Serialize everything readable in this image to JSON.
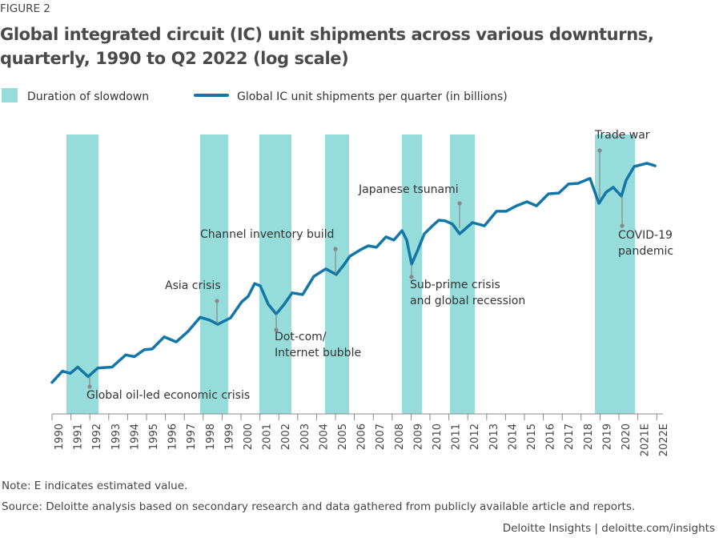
{
  "chart_data": {
    "type": "line",
    "figure_label": "FIGURE 2",
    "title": [
      "Global integrated circuit (IC) unit shipments across various downturns,",
      "quarterly, 1990 to Q2 2022 (log scale)"
    ],
    "band_legend": "Duration of slowdown",
    "band_color": "#96dcda",
    "slowdowns": [
      [
        1990.76,
        1992.46
      ],
      [
        1997.84,
        1999.32
      ],
      [
        2000.97,
        2002.67
      ],
      [
        2004.45,
        2005.72
      ],
      [
        2008.52,
        2009.58
      ],
      [
        2011.06,
        2012.37
      ],
      [
        2018.73,
        2020.85
      ]
    ],
    "x": [
      1990.0,
      1990.55,
      1990.97,
      1991.36,
      1991.91,
      1992.42,
      1993.18,
      1993.9,
      1994.36,
      1994.87,
      1995.3,
      1995.93,
      1996.57,
      1997.2,
      1997.84,
      1998.35,
      1998.77,
      1999.45,
      2000.04,
      2000.38,
      2000.72,
      2001.02,
      2001.44,
      2001.86,
      2002.29,
      2002.71,
      2003.26,
      2003.86,
      2004.49,
      2005.04,
      2005.47,
      2005.76,
      2006.31,
      2006.74,
      2007.16,
      2007.67,
      2008.09,
      2008.52,
      2008.77,
      2009.03,
      2009.36,
      2009.7,
      2010.13,
      2010.47,
      2010.81,
      2011.19,
      2011.57,
      2012.25,
      2012.88,
      2013.52,
      2014.03,
      2014.58,
      2015.13,
      2015.64,
      2016.27,
      2016.82,
      2017.33,
      2017.84,
      2018.47,
      2018.94,
      2019.32,
      2019.7,
      2020.13,
      2020.38,
      2020.81,
      2021.48,
      2021.91
    ],
    "series": [
      {
        "name": "Global IC unit shipments per quarter (in billions)",
        "color": "#1276a6",
        "values": [
          7.2,
          8.2,
          8.0,
          8.6,
          7.7,
          8.5,
          8.6,
          9.9,
          9.7,
          10.5,
          10.6,
          12.2,
          11.5,
          13.0,
          15.3,
          14.8,
          14.1,
          15.2,
          18.3,
          19.5,
          22.6,
          22.0,
          17.8,
          15.9,
          17.8,
          20.3,
          19.9,
          24.6,
          26.8,
          25.1,
          28.3,
          31.0,
          33.4,
          35.0,
          34.4,
          38.8,
          37.4,
          41.7,
          37.4,
          28.3,
          33.4,
          40.2,
          44.1,
          47.1,
          46.7,
          45.0,
          40.2,
          45.8,
          44.1,
          52.2,
          52.2,
          55.6,
          58.3,
          55.6,
          63.9,
          64.5,
          71.5,
          72.1,
          76.3,
          57.2,
          65.1,
          68.9,
          62.2,
          74.8,
          87.6,
          91.0,
          88.4
        ]
      }
    ],
    "ylim": [
      5,
      150
    ],
    "log_y": true,
    "xlim": [
      1990,
      2022.33
    ],
    "xticks": [
      1990,
      1991,
      1992,
      1993,
      1994,
      1995,
      1996,
      1997,
      1998,
      1999,
      2000,
      2001,
      2002,
      2003,
      2004,
      2005,
      2006,
      2007,
      2008,
      2009,
      2010,
      2011,
      2012,
      2013,
      2014,
      2015,
      2016,
      2017,
      2018,
      2019,
      2020,
      {
        "value": 2021,
        "label": "2021E"
      },
      {
        "value": 2022,
        "label": "2022E"
      }
    ],
    "annotations": [
      {
        "lines": [
          "Global oil-led economic crisis"
        ]
      },
      {
        "lines": [
          "Asia crisis"
        ]
      },
      {
        "lines": [
          "Dot-com/",
          "Internet bubble"
        ]
      },
      {
        "lines": [
          "Channel inventory build"
        ]
      },
      {
        "lines": [
          "Japanese tsunami"
        ]
      },
      {
        "lines": [
          "Sub-prime crisis",
          "and global recession"
        ]
      },
      {
        "lines": [
          "Trade war"
        ]
      },
      {
        "lines": [
          "COVID-19",
          "pandemic"
        ]
      }
    ],
    "note": "Note: E indicates estimated value.",
    "source": "Source: Deloitte analysis based on secondary research and data gathered from publicly available article and reports.",
    "footer": "Deloitte Insights | deloitte.com/insights"
  }
}
